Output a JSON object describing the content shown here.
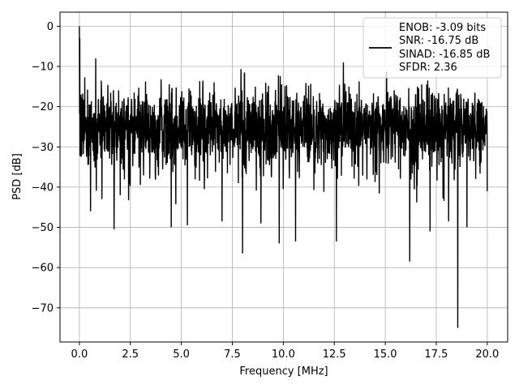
{
  "chart_data": {
    "type": "line",
    "title": "",
    "xlabel": "Frequency [MHz]",
    "ylabel": "PSD [dB]",
    "xlim": [
      -0.95,
      21.0
    ],
    "ylim": [
      -78.5,
      3.5
    ],
    "xticks": [
      0.0,
      2.5,
      5.0,
      7.5,
      10.0,
      12.5,
      15.0,
      17.5,
      20.0
    ],
    "xtick_labels": [
      "0.0",
      "2.5",
      "5.0",
      "7.5",
      "10.0",
      "12.5",
      "15.0",
      "17.5",
      "20.0"
    ],
    "yticks": [
      0,
      -10,
      -20,
      -30,
      -40,
      -50,
      -60,
      -70
    ],
    "ytick_labels": [
      "0",
      "−10",
      "−20",
      "−30",
      "−40",
      "−50",
      "−60",
      "−70"
    ],
    "grid": true,
    "line_color": "#000000",
    "legend_position": "top-right",
    "legend_lines": [
      "ENOB: -3.09 bits",
      "SNR: -16.75 dB",
      "SINAD: -16.85 dB",
      "SFDR: 2.36"
    ],
    "series": [
      {
        "x_range": [
          0.0,
          20.0
        ],
        "points": 2048,
        "noise_band": {
          "typical_max": -12,
          "typical_min": -38,
          "center": -25
        },
        "notable_points": [
          {
            "x": 0.0,
            "y": 0.0
          },
          {
            "x": 0.02,
            "y": -3
          },
          {
            "x": 0.08,
            "y": -17
          },
          {
            "x": 0.12,
            "y": -32
          },
          {
            "x": 0.55,
            "y": -46
          },
          {
            "x": 0.8,
            "y": -8
          },
          {
            "x": 1.1,
            "y": -43
          },
          {
            "x": 1.7,
            "y": -50.5
          },
          {
            "x": 2.0,
            "y": -42
          },
          {
            "x": 4.5,
            "y": -50
          },
          {
            "x": 5.3,
            "y": -49.5
          },
          {
            "x": 7.0,
            "y": -48.5
          },
          {
            "x": 8.0,
            "y": -56.5
          },
          {
            "x": 8.9,
            "y": -49
          },
          {
            "x": 9.8,
            "y": -54
          },
          {
            "x": 10.6,
            "y": -53.5
          },
          {
            "x": 12.6,
            "y": -53.5
          },
          {
            "x": 12.95,
            "y": -9
          },
          {
            "x": 16.2,
            "y": -58.5
          },
          {
            "x": 17.2,
            "y": -51
          },
          {
            "x": 18.1,
            "y": -48.5
          },
          {
            "x": 18.55,
            "y": -75
          },
          {
            "x": 19.0,
            "y": -50
          },
          {
            "x": 20.0,
            "y": -41
          }
        ]
      }
    ]
  }
}
